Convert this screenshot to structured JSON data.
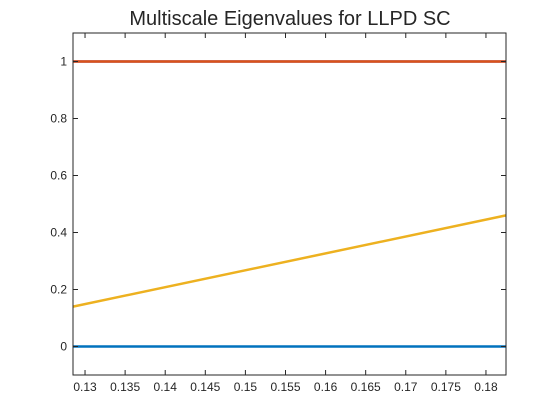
{
  "chart_data": {
    "type": "line",
    "title": "Multiscale Eigenvalues for LLPD SC",
    "xlabel": "",
    "ylabel": "",
    "xlim": [
      0.1285,
      0.1825
    ],
    "ylim": [
      -0.1,
      1.1
    ],
    "grid": false,
    "legend": "none",
    "x_ticks": [
      0.13,
      0.135,
      0.14,
      0.145,
      0.15,
      0.155,
      0.16,
      0.165,
      0.17,
      0.175,
      0.18
    ],
    "x_tick_labels": [
      "0.13",
      "0.135",
      "0.14",
      "0.145",
      "0.15",
      "0.155",
      "0.16",
      "0.165",
      "0.17",
      "0.175",
      "0.18"
    ],
    "y_ticks": [
      0,
      0.2,
      0.4,
      0.6,
      0.8,
      1
    ],
    "y_tick_labels": [
      "0",
      "0.2",
      "0.4",
      "0.6",
      "0.8",
      "1"
    ],
    "series": [
      {
        "color": "#0072BD",
        "x": [
          0.1285,
          0.1825
        ],
        "values": [
          0.0,
          0.0
        ]
      },
      {
        "color": "#EDB120",
        "x": [
          0.1285,
          0.1825
        ],
        "values": [
          0.14,
          0.46
        ]
      },
      {
        "color": "#7E2F8E",
        "x": [
          0.1285,
          0.1825
        ],
        "values": [
          1.0,
          1.0
        ]
      },
      {
        "color": "#D95319",
        "x": [
          0.1285,
          0.1825
        ],
        "values": [
          1.0,
          1.0
        ]
      }
    ]
  }
}
